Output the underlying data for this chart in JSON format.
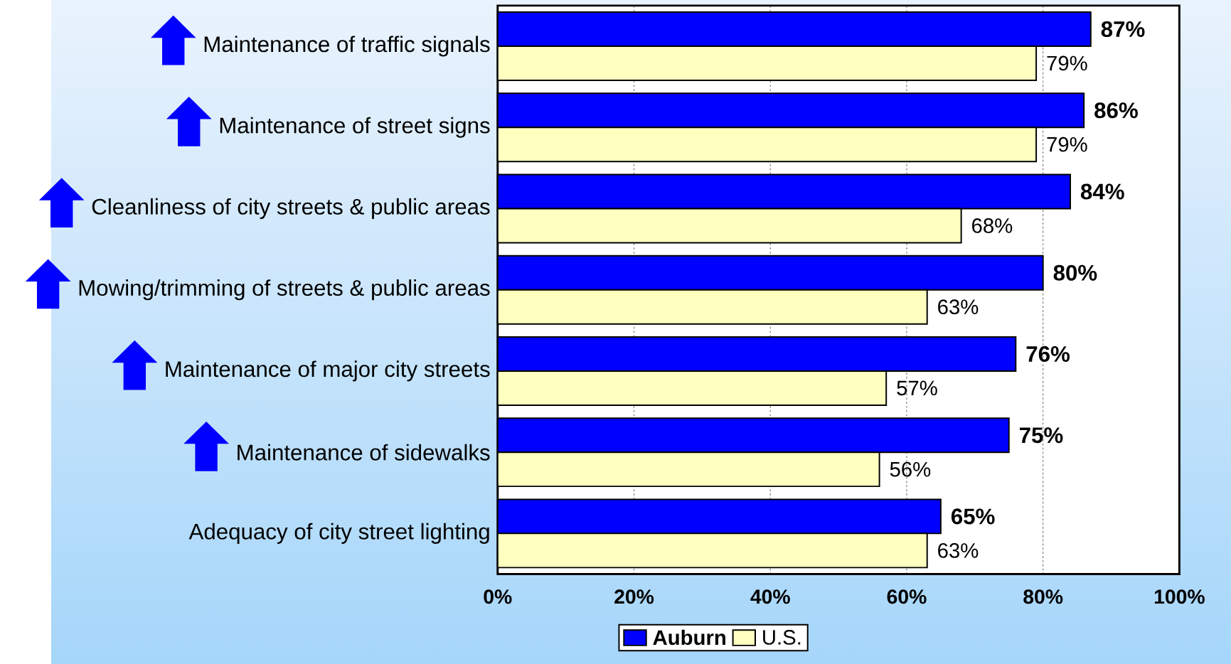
{
  "chart_data": {
    "type": "bar",
    "orientation": "horizontal",
    "categories": [
      "Maintenance of traffic signals",
      "Maintenance of street signs",
      "Cleanliness of city streets & public areas",
      "Mowing/trimming of streets & public areas",
      "Maintenance of major city streets",
      "Maintenance of sidewalks",
      "Adequacy of city street lighting"
    ],
    "series": [
      {
        "name": "Auburn",
        "color": "#0000ff",
        "values": [
          87,
          86,
          84,
          80,
          76,
          75,
          65
        ],
        "value_labels": [
          "87%",
          "86%",
          "84%",
          "80%",
          "76%",
          "75%",
          "65%"
        ]
      },
      {
        "name": "U.S.",
        "color": "#ffffc0",
        "values": [
          79,
          79,
          68,
          63,
          57,
          56,
          63
        ],
        "value_labels": [
          "79%",
          "79%",
          "68%",
          "63%",
          "57%",
          "56%",
          "63%"
        ]
      }
    ],
    "xlim": [
      0,
      100
    ],
    "xticks": [
      {
        "value": 0,
        "label": "0%"
      },
      {
        "value": 20,
        "label": "20%"
      },
      {
        "value": 40,
        "label": "40%"
      },
      {
        "value": 60,
        "label": "60%"
      },
      {
        "value": 80,
        "label": "80%"
      },
      {
        "value": 100,
        "label": "100%"
      }
    ],
    "grid": "x",
    "legend": "bottom"
  }
}
